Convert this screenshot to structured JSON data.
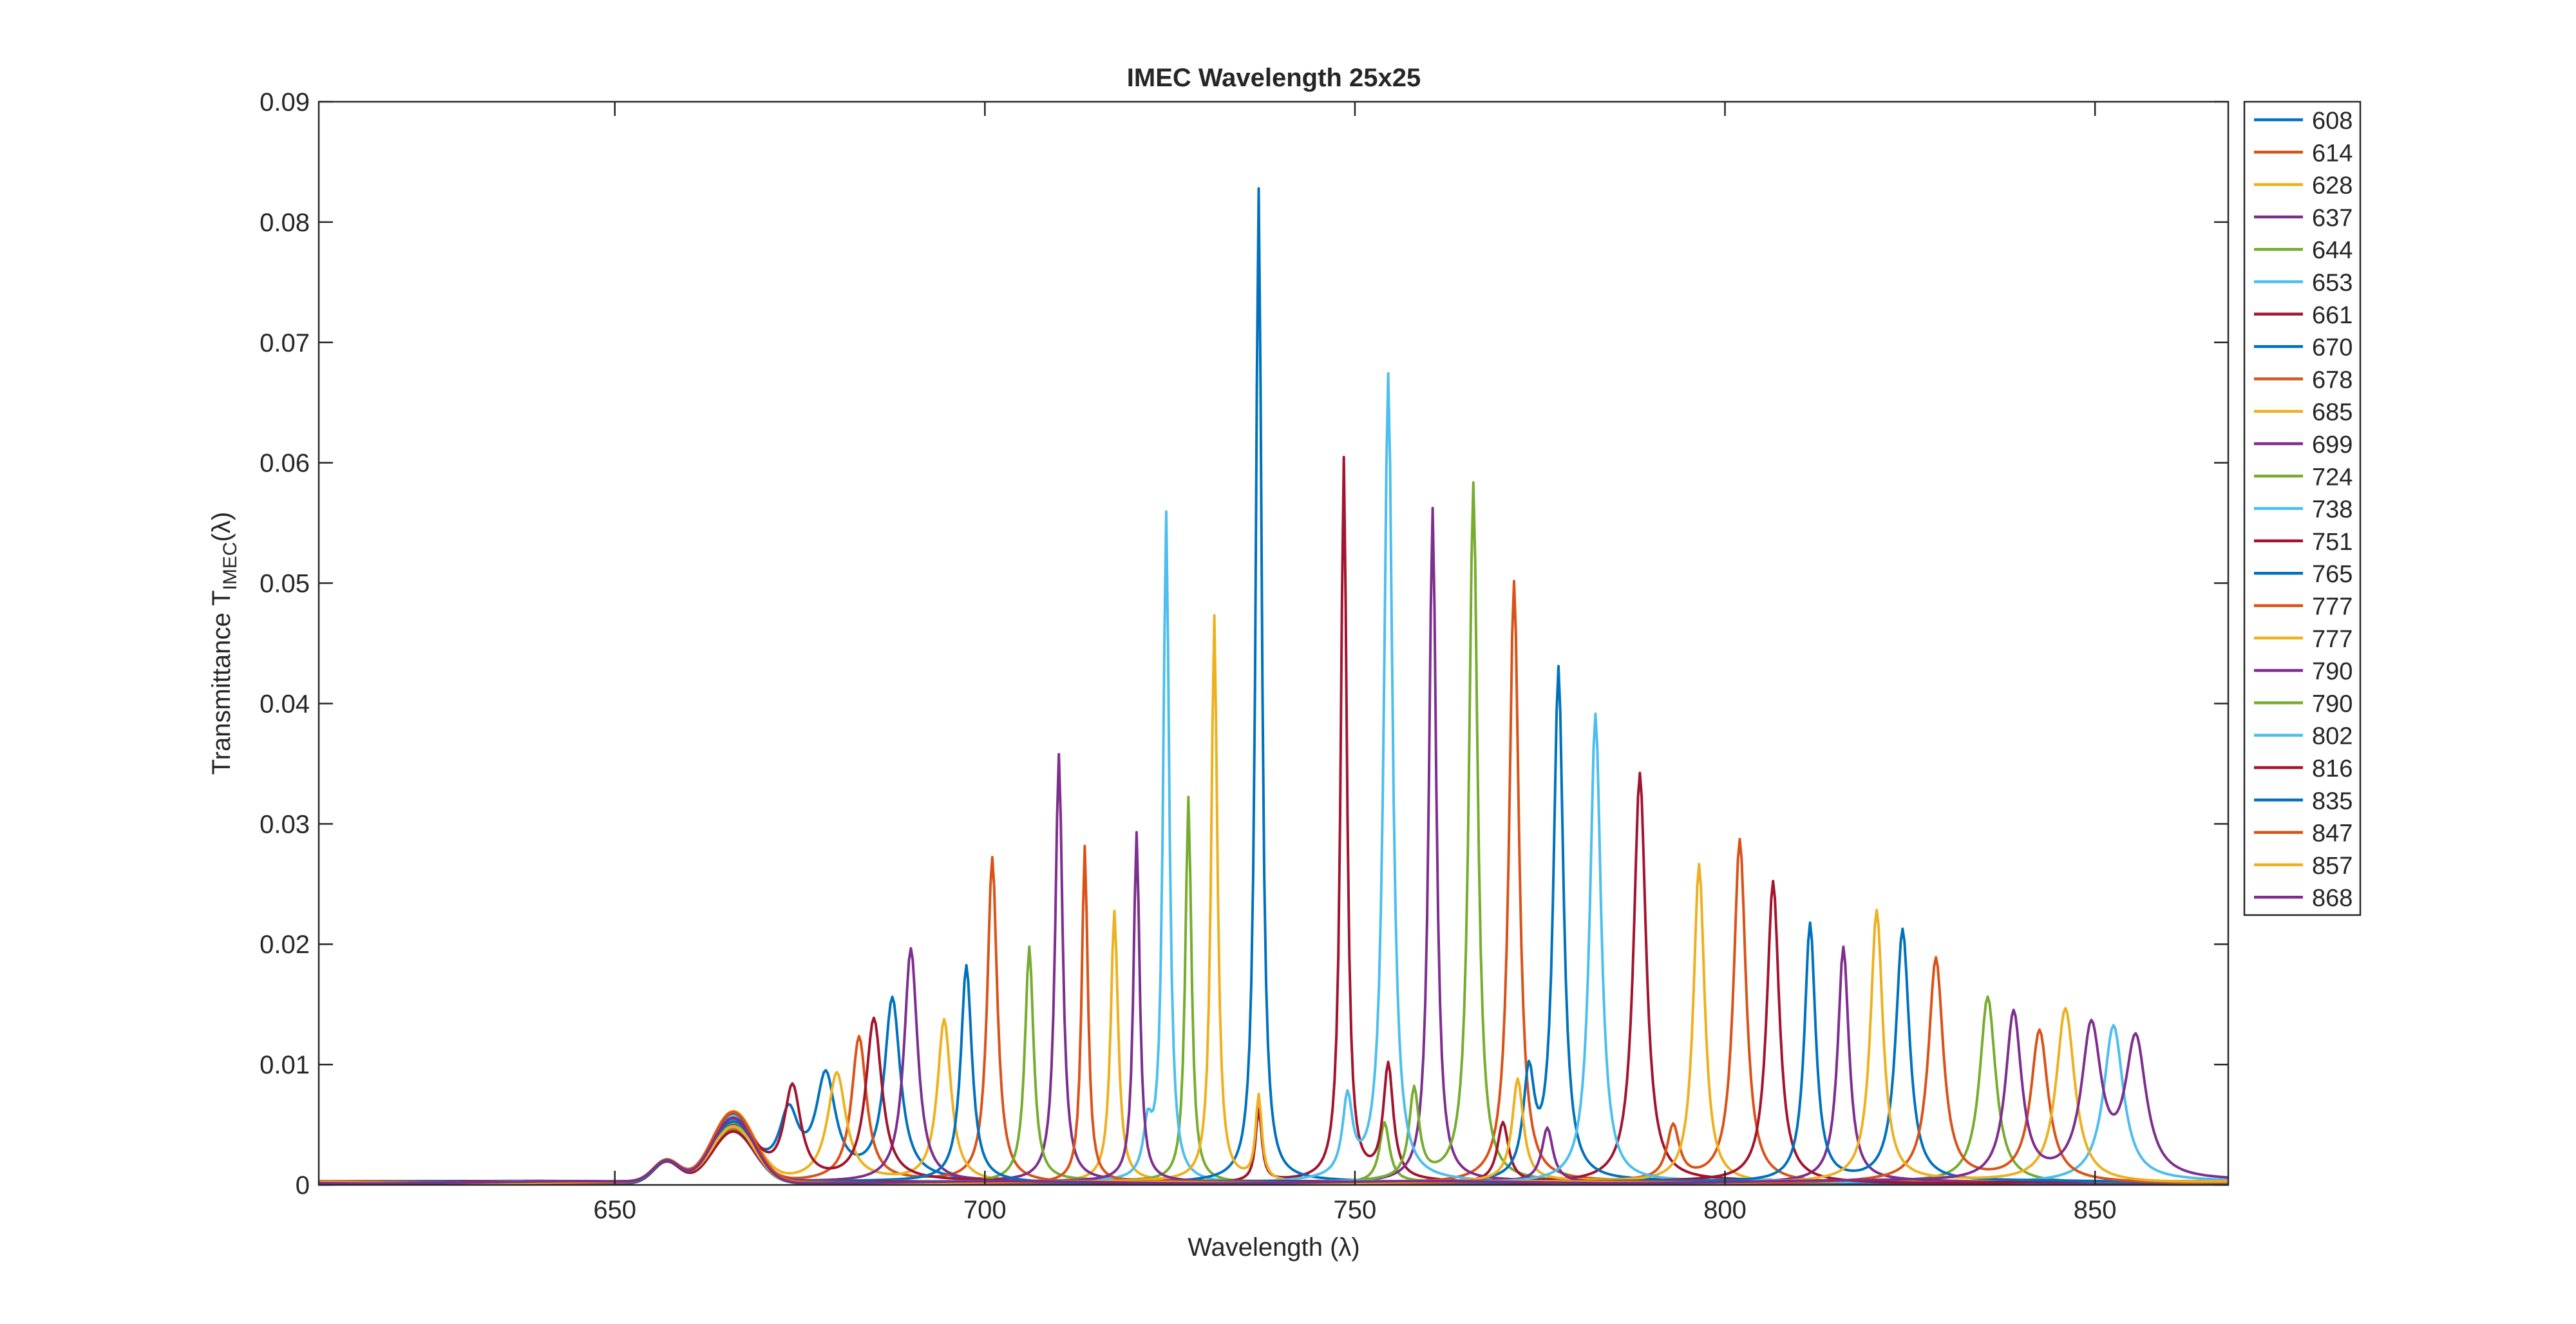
{
  "chart_data": {
    "type": "line",
    "title": "IMEC Wavelength 25x25",
    "xlabel": "Wavelength (λ)",
    "ylabel": {
      "main": "Transmittance T",
      "sub": "IMEC",
      "tail": "(λ)"
    },
    "xlim": [
      610,
      868
    ],
    "ylim": [
      0,
      0.09
    ],
    "xticks": [
      650,
      700,
      750,
      800,
      850
    ],
    "yticks": [
      0,
      0.01,
      0.02,
      0.03,
      0.04,
      0.05,
      0.06,
      0.07,
      0.08,
      0.09
    ],
    "ytick_labels": [
      "0",
      "0.01",
      "0.02",
      "0.03",
      "0.04",
      "0.05",
      "0.06",
      "0.07",
      "0.08",
      "0.09"
    ],
    "grid": false,
    "legend": "outside-top-right",
    "baseline": {
      "floor": 0.0003,
      "bump_center": 666,
      "bump_height": 0.005,
      "bump_width": 4,
      "shoulder_center": 657,
      "shoulder_height": 0.0018,
      "shoulder_width": 2.5
    },
    "series": [
      {
        "name": "608",
        "color": "#0072BD",
        "peaks": [
          [
            673.5,
            0.0055,
            1.6
          ],
          [
            678.5,
            0.0085,
            1.6
          ],
          [
            687.5,
            0.015,
            1.3
          ]
        ]
      },
      {
        "name": "614",
        "color": "#D95319",
        "peaks": [
          [
            683,
            0.012,
            1.2
          ],
          [
            701,
            0.027,
            0.8
          ]
        ]
      },
      {
        "name": "628",
        "color": "#EDB120",
        "peaks": [
          [
            680,
            0.009,
            1.5
          ],
          [
            694.5,
            0.0135,
            1.1
          ],
          [
            717.5,
            0.0225,
            0.6
          ]
        ]
      },
      {
        "name": "637",
        "color": "#7E2F8E",
        "peaks": [
          [
            690,
            0.0195,
            1.1
          ],
          [
            710,
            0.0355,
            0.6
          ]
        ]
      },
      {
        "name": "644",
        "color": "#77AC30",
        "peaks": [
          [
            706,
            0.0195,
            0.7
          ],
          [
            727.5,
            0.032,
            0.5
          ],
          [
            754,
            0.005,
            0.8
          ]
        ]
      },
      {
        "name": "653",
        "color": "#4DBEEE",
        "peaks": [
          [
            722,
            0.004,
            0.7
          ],
          [
            724.5,
            0.0555,
            0.5
          ]
        ]
      },
      {
        "name": "661",
        "color": "#A2142F",
        "peaks": [
          [
            674,
            0.008,
            1.4
          ],
          [
            685,
            0.0135,
            1.3
          ],
          [
            737,
            0.006,
            0.5
          ],
          [
            748.5,
            0.06,
            0.5
          ],
          [
            754.5,
            0.0095,
            0.8
          ]
        ]
      },
      {
        "name": "670",
        "color": "#0072BD",
        "peaks": [
          [
            697.5,
            0.018,
            0.9
          ],
          [
            737,
            0.0825,
            0.5
          ]
        ]
      },
      {
        "name": "678",
        "color": "#D95319",
        "peaks": [
          [
            713.5,
            0.028,
            0.5
          ],
          [
            771.5,
            0.05,
            0.8
          ]
        ]
      },
      {
        "name": "685",
        "color": "#EDB120",
        "peaks": [
          [
            731,
            0.047,
            0.5
          ],
          [
            737,
            0.007,
            0.5
          ]
        ]
      },
      {
        "name": "699",
        "color": "#7E2F8E",
        "peaks": [
          [
            720.5,
            0.029,
            0.5
          ],
          [
            760.5,
            0.056,
            0.6
          ]
        ]
      },
      {
        "name": "724",
        "color": "#77AC30",
        "peaks": [
          [
            758,
            0.0075,
            0.8
          ],
          [
            766,
            0.058,
            0.7
          ]
        ]
      },
      {
        "name": "738",
        "color": "#4DBEEE",
        "peaks": [
          [
            749,
            0.0065,
            0.8
          ],
          [
            754.5,
            0.067,
            0.7
          ]
        ]
      },
      {
        "name": "751",
        "color": "#A2142F",
        "peaks": [
          [
            770,
            0.005,
            0.9
          ],
          [
            788.5,
            0.034,
            1.0
          ]
        ]
      },
      {
        "name": "765",
        "color": "#0072BD",
        "peaks": [
          [
            773.5,
            0.0085,
            0.9
          ],
          [
            777.5,
            0.0425,
            0.8
          ]
        ]
      },
      {
        "name": "777",
        "color": "#D95319",
        "peaks": [
          [
            793,
            0.0045,
            1.0
          ],
          [
            802,
            0.0285,
            1.0
          ]
        ]
      },
      {
        "name": "777",
        "color": "#EDB120",
        "peaks": [
          [
            772,
            0.0085,
            0.9
          ],
          [
            796.5,
            0.0265,
            0.9
          ]
        ]
      },
      {
        "name": "790",
        "color": "#7E2F8E",
        "peaks": [
          [
            776,
            0.0045,
            0.9
          ],
          [
            816,
            0.0195,
            0.9
          ]
        ]
      },
      {
        "name": "790",
        "color": "#77AC30",
        "peaks": [
          [
            835.5,
            0.0155,
            1.3
          ]
        ]
      },
      {
        "name": "802",
        "color": "#4DBEEE",
        "peaks": [
          [
            782.5,
            0.039,
            0.9
          ],
          [
            852.5,
            0.013,
            1.6
          ]
        ]
      },
      {
        "name": "816",
        "color": "#A2142F",
        "peaks": [
          [
            806.5,
            0.025,
            1.0
          ]
        ]
      },
      {
        "name": "835",
        "color": "#0072BD",
        "peaks": [
          [
            811.5,
            0.0215,
            0.9
          ],
          [
            824,
            0.021,
            1.1
          ]
        ]
      },
      {
        "name": "847",
        "color": "#D95319",
        "peaks": [
          [
            828.5,
            0.0185,
            1.2
          ],
          [
            842.5,
            0.0125,
            1.4
          ]
        ]
      },
      {
        "name": "857",
        "color": "#EDB120",
        "peaks": [
          [
            820.5,
            0.0225,
            1.0
          ],
          [
            846,
            0.0145,
            1.5
          ]
        ]
      },
      {
        "name": "868",
        "color": "#7E2F8E",
        "peaks": [
          [
            839,
            0.014,
            1.3
          ],
          [
            849.5,
            0.0125,
            1.6
          ],
          [
            855.5,
            0.0115,
            1.7
          ]
        ]
      }
    ]
  }
}
